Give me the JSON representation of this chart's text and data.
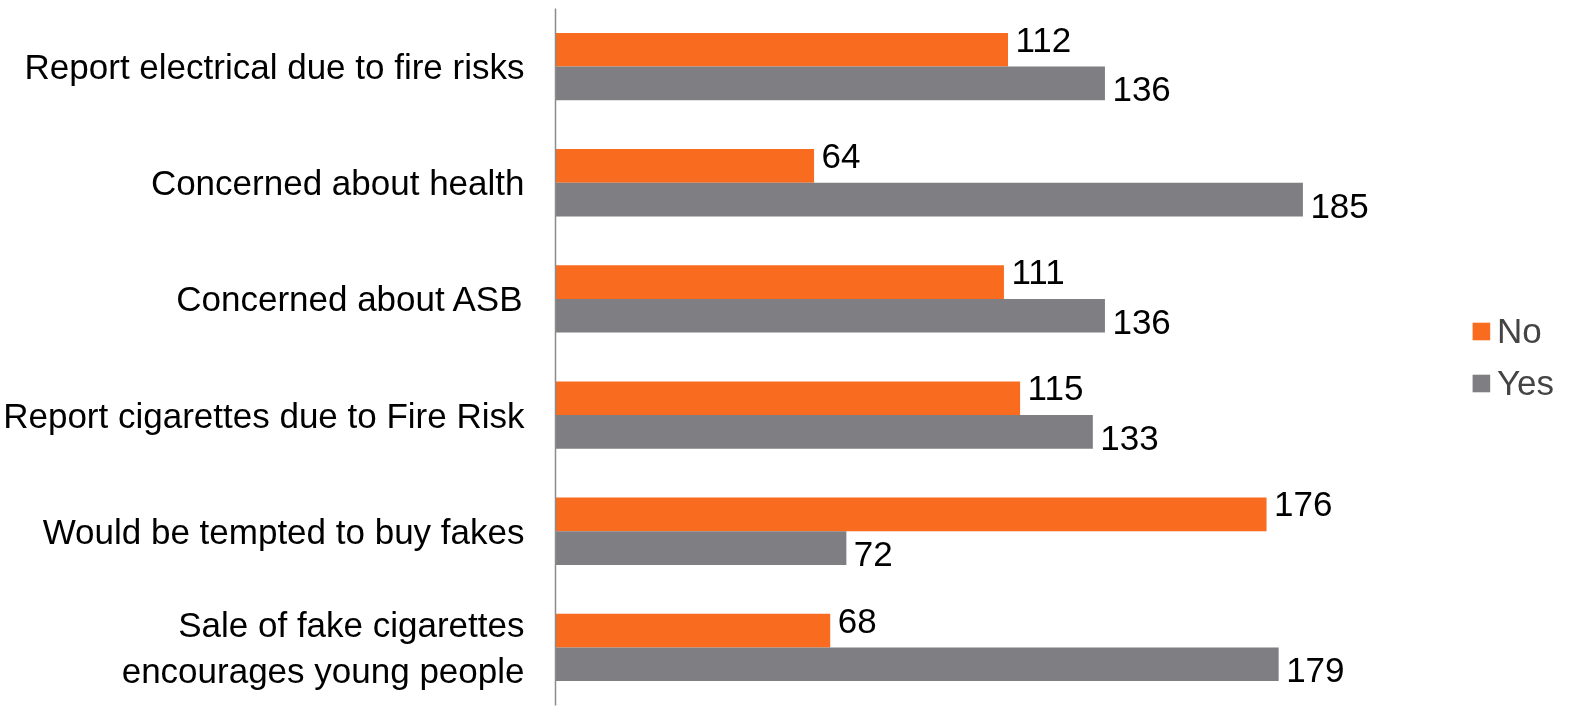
{
  "chart_data": {
    "type": "bar",
    "orientation": "horizontal",
    "categories": [
      "Report electrical due to fire risks",
      "Concerned about health",
      "Concerned about ASB",
      "Report cigarettes due to Fire Risk",
      "Would be tempted to buy fakes",
      "Sale of fake cigarettes\nencourages young people"
    ],
    "series": [
      {
        "name": "No",
        "color": "#f96b1f",
        "values": [
          112,
          64,
          111,
          115,
          176,
          68
        ]
      },
      {
        "name": "Yes",
        "color": "#7f7f83",
        "values": [
          136,
          185,
          136,
          133,
          72,
          179
        ]
      }
    ],
    "data_labels": true,
    "legend": "right",
    "grid": false,
    "tick_labels": "y"
  }
}
